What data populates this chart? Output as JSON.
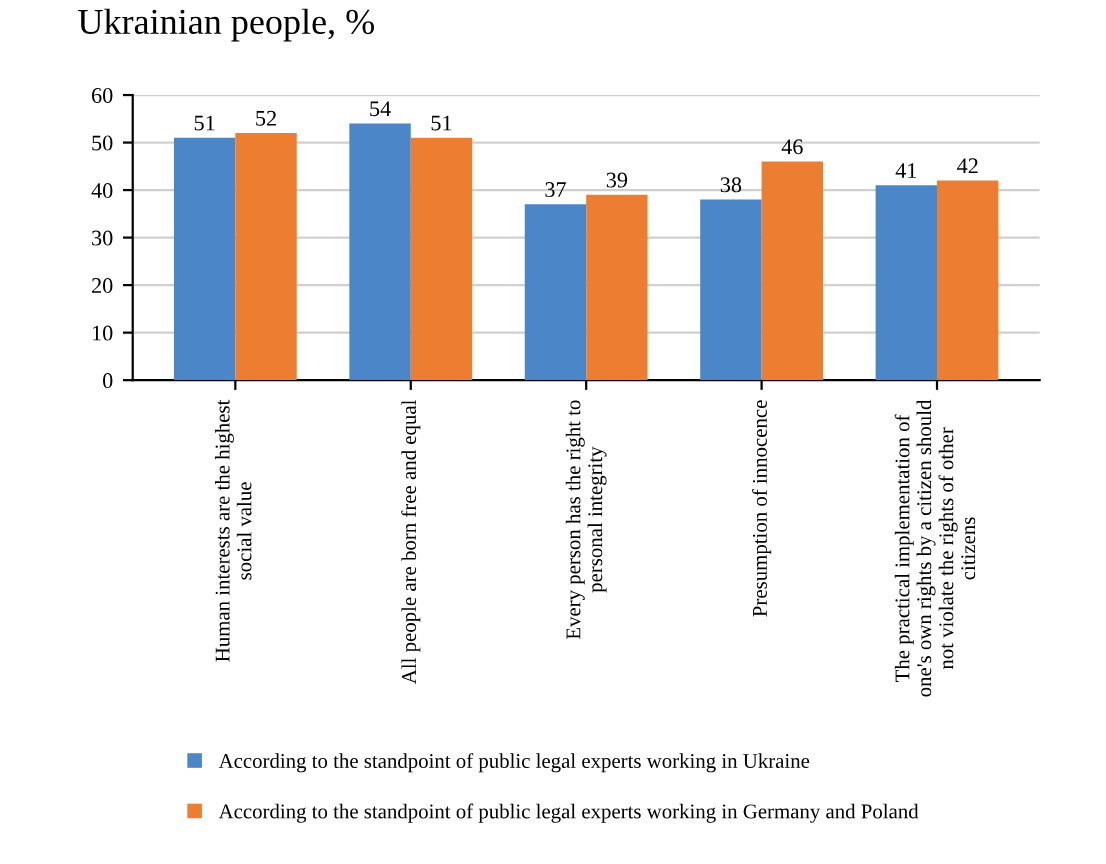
{
  "chart_data": {
    "type": "bar",
    "title": "Ukrainian people, %",
    "categories": [
      "Human interests are the highest social value",
      "All people are born free and equal",
      "Every person has the right to personal integrity",
      "Presumption of innocence",
      "The practical implementation of one's own rights by a citizen should not violate the rights of other citizens"
    ],
    "series": [
      {
        "name": "According to the standpoint of public legal experts working in Ukraine",
        "color": "#4a86c8",
        "values": [
          51,
          54,
          37,
          38,
          41
        ]
      },
      {
        "name": "According to the standpoint of public legal experts working in Germany and Poland",
        "color": "#ed7d31",
        "values": [
          52,
          51,
          39,
          46,
          42
        ]
      }
    ],
    "ylim": [
      0,
      60
    ],
    "yticks": [
      0,
      10,
      20,
      30,
      40,
      50,
      60
    ],
    "grid": "y",
    "data_labels": true,
    "legend": "bottom"
  }
}
